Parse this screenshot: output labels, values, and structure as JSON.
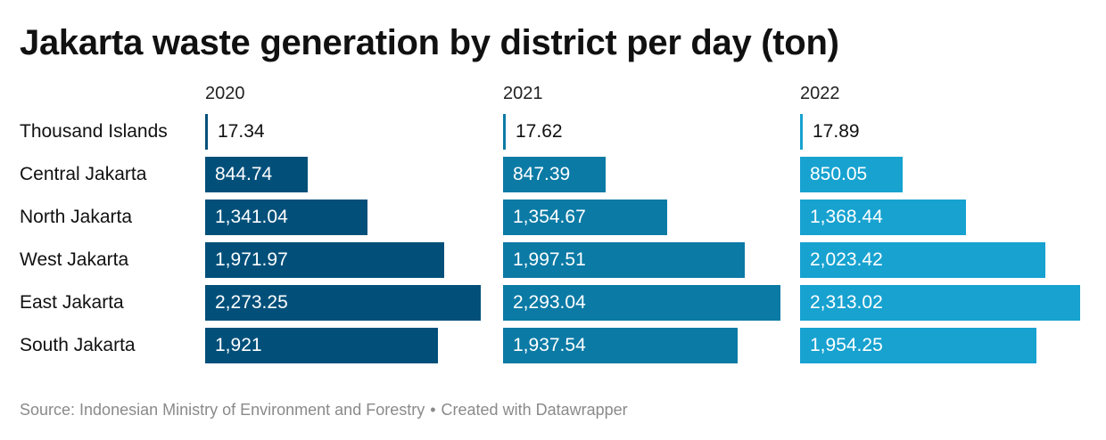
{
  "title": "Jakarta waste generation by district per day (ton)",
  "source": {
    "text": "Source: Indonesian Ministry of Environment and Forestry",
    "separator": "•",
    "credit": "Created with Datawrapper"
  },
  "chart_data": {
    "type": "bar",
    "title": "Jakarta waste generation by district per day (ton)",
    "categories": [
      "Thousand Islands",
      "Central Jakarta",
      "North Jakarta",
      "West Jakarta",
      "East Jakarta",
      "South Jakarta"
    ],
    "series": [
      {
        "name": "2020",
        "color": "#02507a",
        "values": [
          17.34,
          844.74,
          1341.04,
          1971.97,
          2273.25,
          1921
        ],
        "labels": [
          "17.34",
          "844.74",
          "1,341.04",
          "1,971.97",
          "2,273.25",
          "1,921"
        ]
      },
      {
        "name": "2021",
        "color": "#0b7aa5",
        "values": [
          17.62,
          847.39,
          1354.67,
          1997.51,
          2293.04,
          1937.54
        ],
        "labels": [
          "17.62",
          "847.39",
          "1,354.67",
          "1,997.51",
          "2,293.04",
          "1,937.54"
        ]
      },
      {
        "name": "2022",
        "color": "#17a2d0",
        "values": [
          17.89,
          850.05,
          1368.44,
          2023.42,
          2313.02,
          1954.25
        ],
        "labels": [
          "17.89",
          "850.05",
          "1,368.44",
          "2,023.42",
          "2,313.02",
          "1,954.25"
        ]
      }
    ],
    "xlim": [
      0,
      2313.02
    ],
    "grid": false,
    "legend": "column headers"
  }
}
